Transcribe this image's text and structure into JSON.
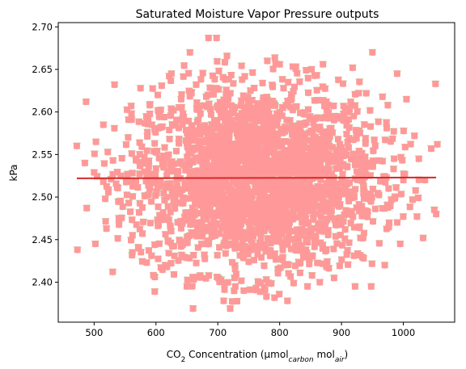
{
  "chart_data": {
    "type": "scatter",
    "title": "Saturated Moisture Vapor Pressure outputs",
    "xlabel": {
      "main": "CO",
      "sub2": "2",
      "mid": " Concentration (µmol",
      "sub_carbon": "carbon",
      "mid2": " mol",
      "sub_air": "air",
      "end": ")"
    },
    "ylabel": "kPa",
    "xlim": [
      442,
      1083
    ],
    "ylim": [
      2.353,
      2.705
    ],
    "xticks": [
      500,
      600,
      700,
      800,
      900,
      1000
    ],
    "yticks": [
      2.4,
      2.45,
      2.5,
      2.55,
      2.6,
      2.65,
      2.7
    ],
    "ytick_labels": [
      "2.40",
      "2.45",
      "2.50",
      "2.55",
      "2.60",
      "2.65",
      "2.70"
    ],
    "grid": false,
    "cloud": {
      "x_center": 762,
      "x_sd": 100,
      "y_center": 2.522,
      "y_sd": 0.055,
      "count": 2500
    },
    "outliers": [
      [
        472,
        2.56
      ],
      [
        473,
        2.438
      ],
      [
        485,
        2.54
      ],
      [
        487,
        2.612
      ],
      [
        488,
        2.487
      ],
      [
        500,
        2.529
      ],
      [
        502,
        2.445
      ],
      [
        503,
        2.565
      ],
      [
        515,
        2.585
      ],
      [
        518,
        2.498
      ],
      [
        520,
        2.463
      ],
      [
        522,
        2.553
      ],
      [
        530,
        2.412
      ],
      [
        533,
        2.632
      ],
      [
        540,
        2.475
      ],
      [
        543,
        2.525
      ],
      [
        555,
        2.57
      ],
      [
        560,
        2.607
      ],
      [
        562,
        2.435
      ],
      [
        575,
        2.628
      ],
      [
        578,
        2.457
      ],
      [
        585,
        2.423
      ],
      [
        590,
        2.608
      ],
      [
        598,
        2.389
      ],
      [
        605,
        2.595
      ],
      [
        625,
        2.645
      ],
      [
        650,
        2.395
      ],
      [
        655,
        2.67
      ],
      [
        660,
        2.369
      ],
      [
        665,
        2.632
      ],
      [
        685,
        2.687
      ],
      [
        698,
        2.687
      ],
      [
        712,
        2.638
      ],
      [
        720,
        2.369
      ],
      [
        742,
        2.39
      ],
      [
        762,
        2.393
      ],
      [
        780,
        2.66
      ],
      [
        800,
        2.656
      ],
      [
        808,
        2.42
      ],
      [
        845,
        2.395
      ],
      [
        860,
        2.643
      ],
      [
        870,
        2.656
      ],
      [
        888,
        2.405
      ],
      [
        918,
        2.652
      ],
      [
        922,
        2.395
      ],
      [
        940,
        2.622
      ],
      [
        948,
        2.395
      ],
      [
        950,
        2.67
      ],
      [
        970,
        2.42
      ],
      [
        975,
        2.608
      ],
      [
        985,
        2.545
      ],
      [
        990,
        2.645
      ],
      [
        995,
        2.445
      ],
      [
        1000,
        2.52
      ],
      [
        1005,
        2.615
      ],
      [
        1015,
        2.497
      ],
      [
        1018,
        2.572
      ],
      [
        1022,
        2.477
      ],
      [
        1025,
        2.545
      ],
      [
        1032,
        2.452
      ],
      [
        1035,
        2.52
      ],
      [
        1045,
        2.557
      ],
      [
        1050,
        2.485
      ],
      [
        1052,
        2.633
      ],
      [
        1053,
        2.48
      ],
      [
        1055,
        2.562
      ]
    ],
    "mean_line": {
      "x": [
        472,
        1053
      ],
      "y": [
        2.522,
        2.523
      ],
      "color": "#d62728"
    },
    "marker_colors": {
      "fill": "#ff9999",
      "edge": "#98e898"
    }
  }
}
